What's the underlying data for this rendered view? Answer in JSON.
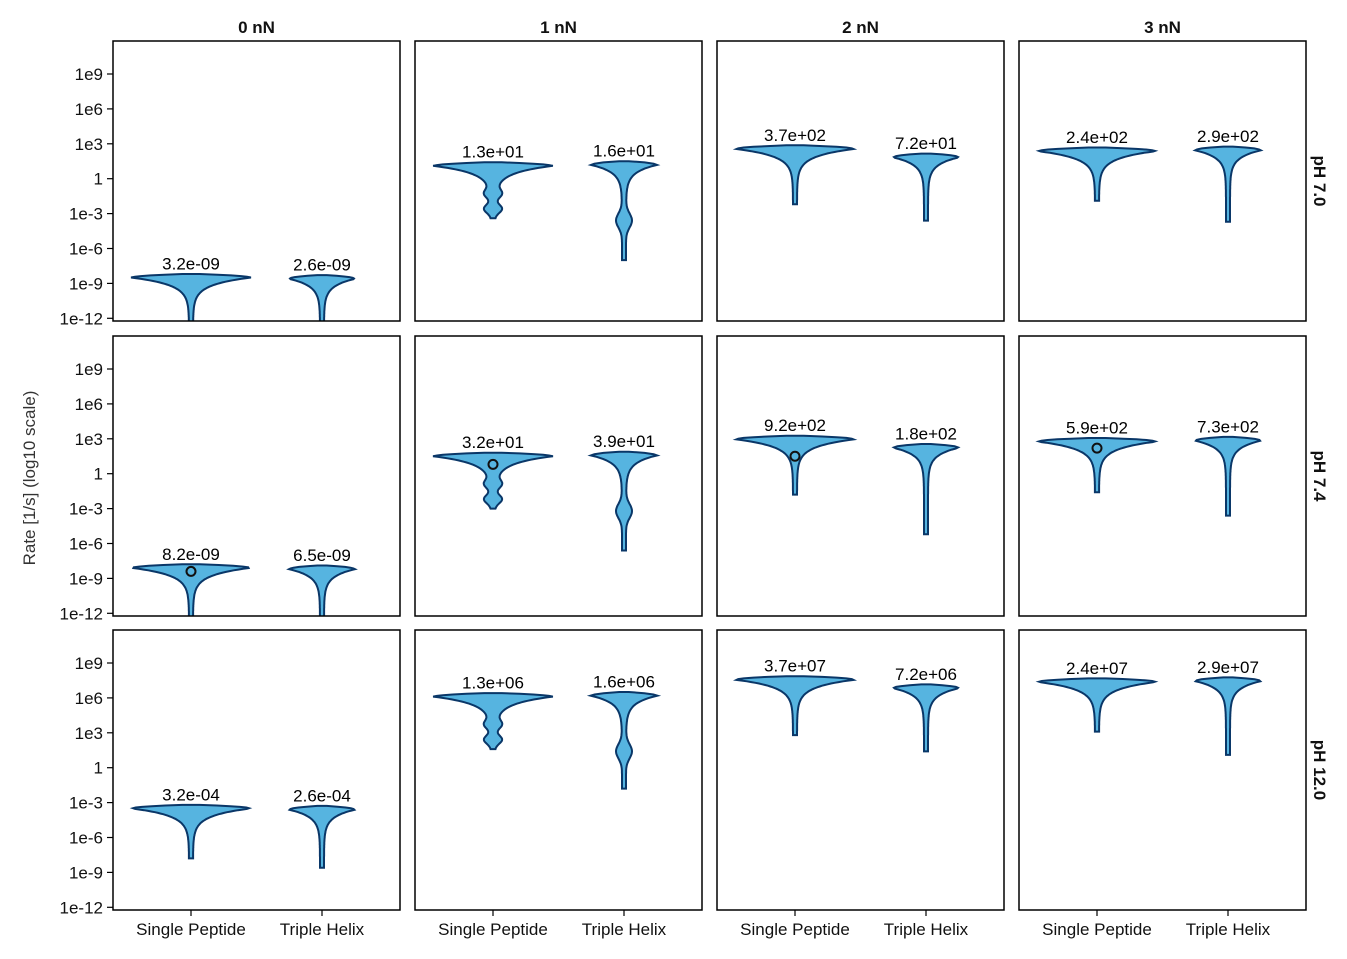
{
  "chart_data": {
    "type": "violin",
    "ylabel": "Rate [1/s] (log10 scale)",
    "y_scale": "log10",
    "ylim_log10": [
      -13,
      11
    ],
    "y_ticks": [
      1e-12,
      1e-09,
      1e-06,
      0.001,
      1,
      1000.0,
      1000000.0,
      1000000000.0
    ],
    "y_tick_labels": [
      "1e-12",
      "1e-9",
      "1e-6",
      "1e-3",
      "1",
      "1e3",
      "1e6",
      "1e9"
    ],
    "categories": [
      "Single Peptide",
      "Triple Helix"
    ],
    "columns": [
      "0 nN",
      "1 nN",
      "2 nN",
      "3 nN"
    ],
    "rows": [
      "pH 7.0",
      "pH 7.4",
      "pH 12.0"
    ],
    "colors": {
      "fill": "#56b4e0",
      "edge": "#0a3768",
      "frame": "#000000"
    },
    "panels": [
      {
        "row": "pH 7.0",
        "column": "0 nN",
        "values": [
          3.2e-09,
          2.6e-09
        ],
        "labels": [
          "3.2e-09",
          "2.6e-09"
        ],
        "log10_min": [
          -13,
          -13
        ],
        "marker": null
      },
      {
        "row": "pH 7.0",
        "column": "1 nN",
        "values": [
          13,
          16
        ],
        "labels": [
          "1.3e+01",
          "1.6e+01"
        ],
        "log10_min": [
          -3.4,
          -7
        ],
        "marker": null
      },
      {
        "row": "pH 7.0",
        "column": "2 nN",
        "values": [
          370,
          72
        ],
        "labels": [
          "3.7e+02",
          "7.2e+01"
        ],
        "log10_min": [
          -2.2,
          -3.6
        ],
        "marker": null
      },
      {
        "row": "pH 7.0",
        "column": "3 nN",
        "values": [
          240,
          290
        ],
        "labels": [
          "2.4e+02",
          "2.9e+02"
        ],
        "log10_min": [
          -1.9,
          -3.7
        ],
        "marker": null
      },
      {
        "row": "pH 7.4",
        "column": "0 nN",
        "values": [
          8.2e-09,
          6.5e-09
        ],
        "labels": [
          "8.2e-09",
          "6.5e-09"
        ],
        "log10_min": [
          -13,
          -13
        ],
        "marker": {
          "category": 0,
          "log10": -8.4
        }
      },
      {
        "row": "pH 7.4",
        "column": "1 nN",
        "values": [
          32,
          39
        ],
        "labels": [
          "3.2e+01",
          "3.9e+01"
        ],
        "log10_min": [
          -3,
          -6.6
        ],
        "marker": {
          "category": 0,
          "log10": 0.8
        }
      },
      {
        "row": "pH 7.4",
        "column": "2 nN",
        "values": [
          920,
          180
        ],
        "labels": [
          "9.2e+02",
          "1.8e+02"
        ],
        "log10_min": [
          -1.8,
          -5.2
        ],
        "marker": {
          "category": 0,
          "log10": 1.5
        }
      },
      {
        "row": "pH 7.4",
        "column": "3 nN",
        "values": [
          590,
          730
        ],
        "labels": [
          "5.9e+02",
          "7.3e+02"
        ],
        "log10_min": [
          -1.6,
          -3.6
        ],
        "marker": {
          "category": 0,
          "log10": 2.2
        }
      },
      {
        "row": "pH 12.0",
        "column": "0 nN",
        "values": [
          0.00032,
          0.00026
        ],
        "labels": [
          "3.2e-04",
          "2.6e-04"
        ],
        "log10_min": [
          -7.8,
          -8.6
        ],
        "marker": null
      },
      {
        "row": "pH 12.0",
        "column": "1 nN",
        "values": [
          1300000.0,
          1600000.0
        ],
        "labels": [
          "1.3e+06",
          "1.6e+06"
        ],
        "log10_min": [
          1.6,
          -1.8
        ],
        "marker": null
      },
      {
        "row": "pH 12.0",
        "column": "2 nN",
        "values": [
          37000000.0,
          7200000.0
        ],
        "labels": [
          "3.7e+07",
          "7.2e+06"
        ],
        "log10_min": [
          2.8,
          1.4
        ],
        "marker": null
      },
      {
        "row": "pH 12.0",
        "column": "3 nN",
        "values": [
          24000000.0,
          29000000.0
        ],
        "labels": [
          "2.4e+07",
          "2.9e+07"
        ],
        "log10_min": [
          3.1,
          1.1
        ],
        "marker": null
      }
    ]
  }
}
